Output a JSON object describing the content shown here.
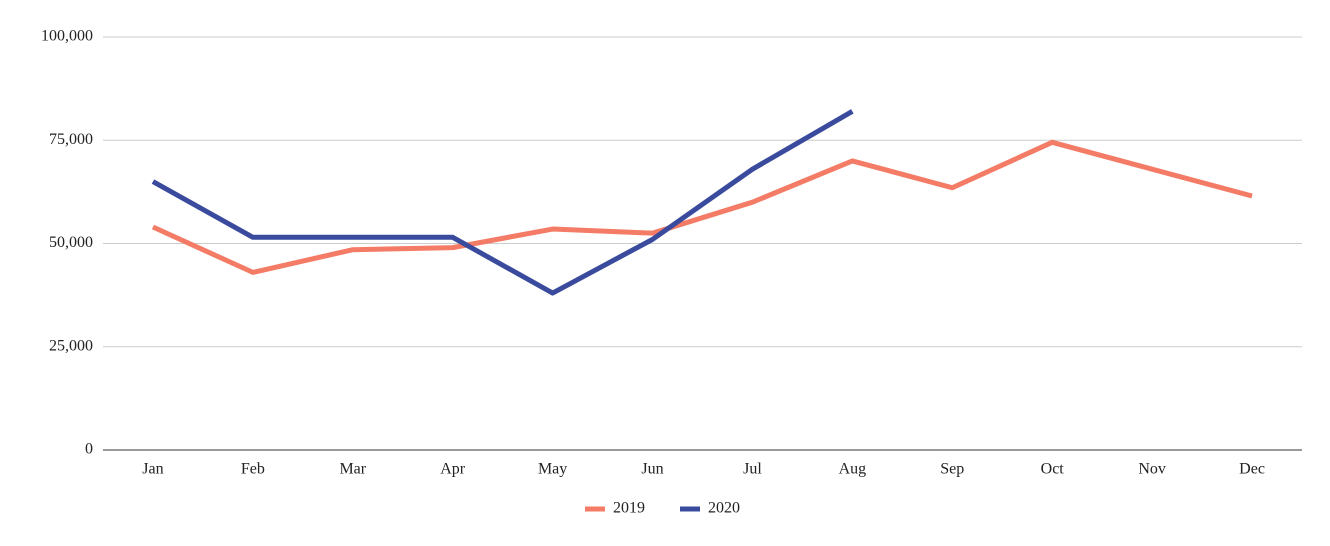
{
  "chart_data": {
    "type": "line",
    "categories": [
      "Jan",
      "Feb",
      "Mar",
      "Apr",
      "May",
      "Jun",
      "Jul",
      "Aug",
      "Sep",
      "Oct",
      "Nov",
      "Dec"
    ],
    "series": [
      {
        "name": "2019",
        "color": "#f47b66",
        "values": [
          54000,
          43000,
          48500,
          49000,
          53500,
          52500,
          60000,
          70000,
          63500,
          74500,
          68000,
          61500
        ]
      },
      {
        "name": "2020",
        "color": "#3a4b9d",
        "values": [
          65000,
          51500,
          51500,
          51500,
          38000,
          51000,
          68000,
          82000,
          null,
          null,
          null,
          null
        ]
      }
    ],
    "ylim": [
      0,
      100000
    ],
    "yticks": [
      0,
      {
        "value": 25000,
        "label": "25,000"
      },
      {
        "value": 50000,
        "label": "50,000"
      },
      {
        "value": 75000,
        "label": "75,000"
      },
      {
        "value": 100000,
        "label": "100,000"
      }
    ],
    "grid": true,
    "legend": "bottom"
  }
}
